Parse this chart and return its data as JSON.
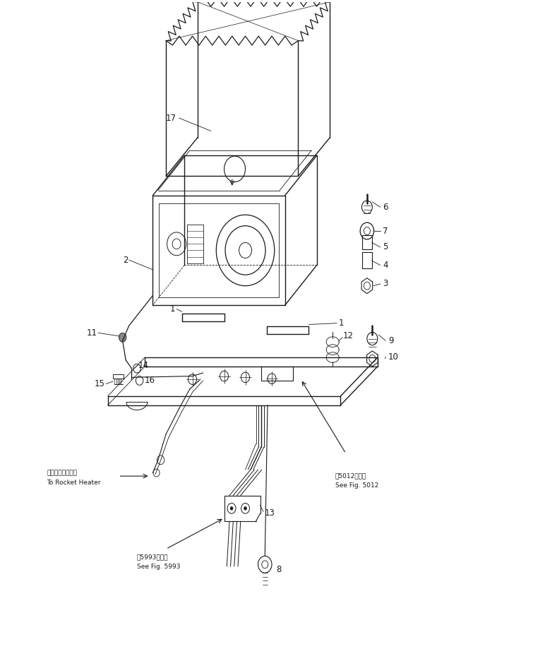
{
  "bg_color": "#ffffff",
  "line_color": "#1a1a1a",
  "fig_width": 7.55,
  "fig_height": 9.19,
  "dpi": 100,
  "annotations": {
    "rocket_heater_jp": [
      0.085,
      0.27,
      "ロケットヒータへ"
    ],
    "rocket_heater_en": [
      0.085,
      0.255,
      "To Rocket Heater"
    ],
    "fig5993_jp": [
      0.255,
      0.14,
      "第5993図参照"
    ],
    "fig5993_en": [
      0.255,
      0.125,
      "See Fig. 5993"
    ],
    "fig5012_jp": [
      0.63,
      0.265,
      "第5012図参照"
    ],
    "fig5012_en": [
      0.63,
      0.25,
      "See Fig. 5012"
    ]
  }
}
